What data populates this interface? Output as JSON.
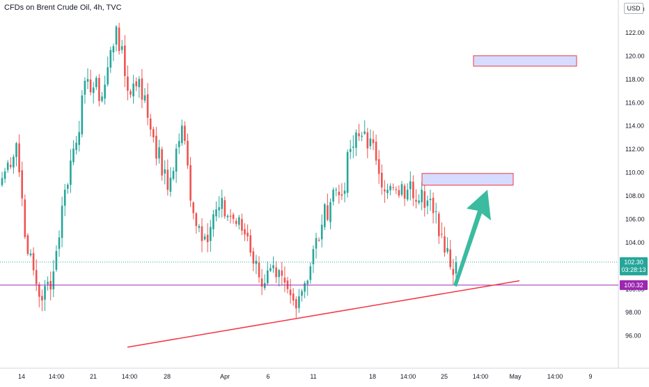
{
  "chart_title": "CFDs on Brent Crude Oil, 4h, TVC",
  "currency": "USD",
  "colors": {
    "up": "#26a69a",
    "down": "#ef5350",
    "trendline": "#f23645",
    "support": "#9c27b0",
    "arrow": "#3bbba0",
    "zone_fill": "#d6dcff",
    "zone_border": "#f23645",
    "last_line": "#26a69a"
  },
  "chart_data": {
    "type": "candlestick",
    "title": "CFDs on Brent Crude Oil, 4h, TVC",
    "ylim": [
      95,
      125
    ],
    "y_ticks": [
      96,
      98,
      100,
      102,
      104,
      106,
      108,
      110,
      112,
      114,
      116,
      118,
      120,
      122,
      124
    ],
    "x_tick_labels": [
      "14",
      "14:00",
      "21",
      "14:00",
      "28",
      "Apr",
      "6",
      "11",
      "18",
      "14:00",
      "25",
      "14:00",
      "May",
      "14:00",
      "9"
    ],
    "anchors": [
      [
        0,
        109.5
      ],
      [
        5,
        112.5
      ],
      [
        9,
        103.0
      ],
      [
        14,
        99.0
      ],
      [
        18,
        101.5
      ],
      [
        22,
        108.5
      ],
      [
        30,
        118.0
      ],
      [
        35,
        116.5
      ],
      [
        40,
        122.5
      ],
      [
        44,
        117.0
      ],
      [
        48,
        118.0
      ],
      [
        53,
        113.0
      ],
      [
        58,
        108.5
      ],
      [
        63,
        114.0
      ],
      [
        67,
        106.5
      ],
      [
        71,
        104.5
      ],
      [
        76,
        107.0
      ],
      [
        81,
        106.0
      ],
      [
        86,
        104.5
      ],
      [
        90,
        101.0
      ],
      [
        96,
        101.0
      ],
      [
        102,
        99.0
      ],
      [
        106,
        100.5
      ],
      [
        112,
        105.5
      ],
      [
        116,
        108.5
      ],
      [
        119,
        108.0
      ],
      [
        122,
        112.0
      ],
      [
        127,
        113.5
      ],
      [
        131,
        111.0
      ],
      [
        135,
        108.5
      ],
      [
        139,
        108.0
      ],
      [
        142,
        108.5
      ],
      [
        147,
        108.5
      ],
      [
        151,
        106.5
      ],
      [
        156,
        103.5
      ],
      [
        158,
        101.2
      ],
      [
        159,
        102.3
      ]
    ],
    "last_price": 102.3,
    "countdown": "03:28:13",
    "support_level": 100.32,
    "trendline": {
      "start": [
        "Mar 21",
        95.0
      ],
      "end": [
        "Apr 30",
        100.7
      ]
    },
    "target_zones": [
      {
        "low": 119.1,
        "high": 120.0
      },
      {
        "low": 108.9,
        "high": 109.9
      }
    ],
    "projection_arrow": {
      "from": 100.3,
      "to": 108.5
    }
  }
}
